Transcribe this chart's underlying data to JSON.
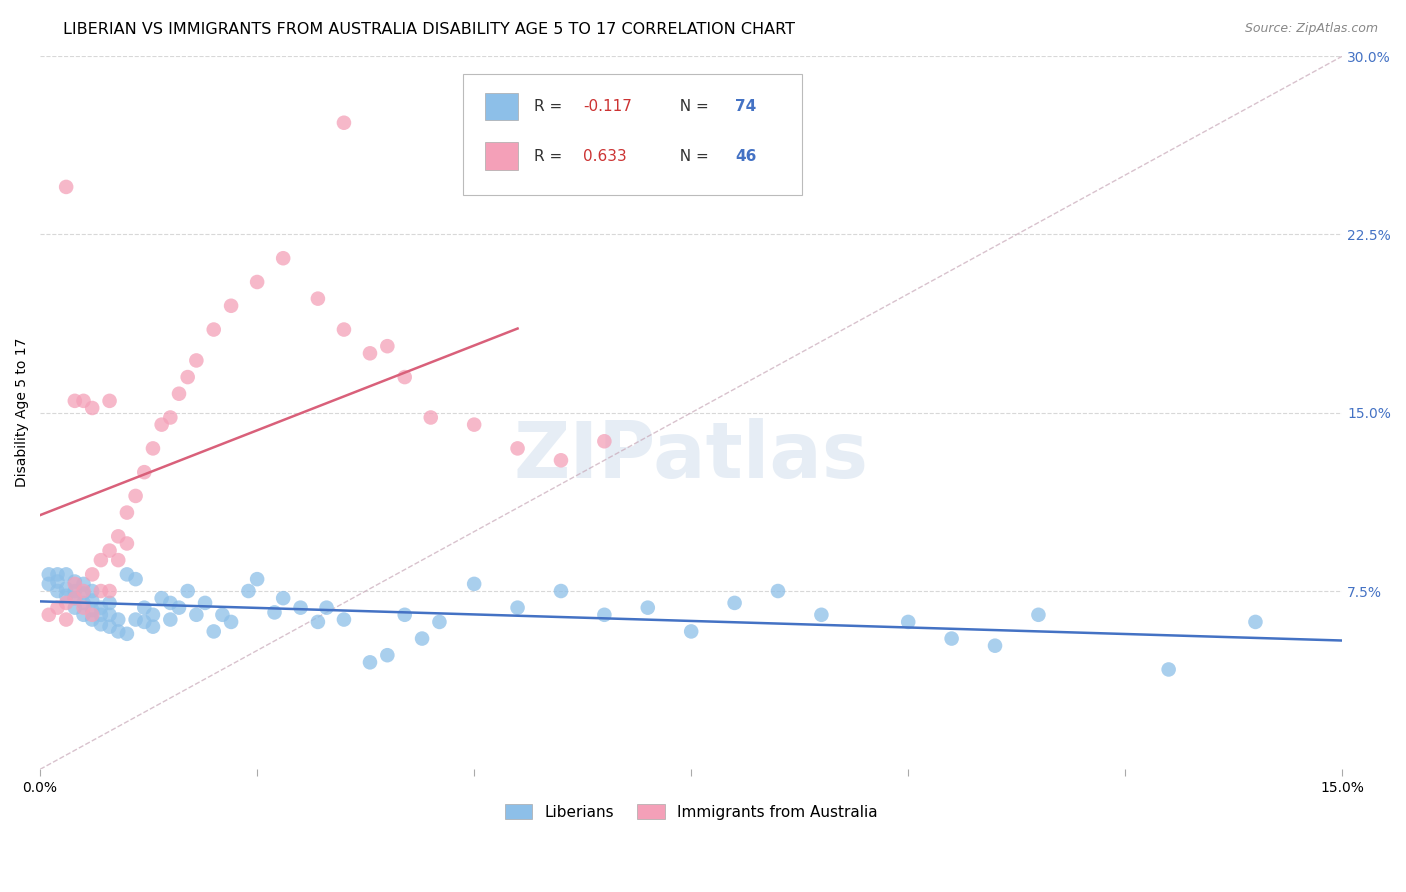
{
  "title": "LIBERIAN VS IMMIGRANTS FROM AUSTRALIA DISABILITY AGE 5 TO 17 CORRELATION CHART",
  "source": "Source: ZipAtlas.com",
  "ylabel": "Disability Age 5 to 17",
  "xlim": [
    0.0,
    0.15
  ],
  "ylim": [
    0.0,
    0.3
  ],
  "yticks": [
    0.0,
    0.075,
    0.15,
    0.225,
    0.3
  ],
  "ytick_labels": [
    "",
    "7.5%",
    "15.0%",
    "22.5%",
    "30.0%"
  ],
  "legend_R1": "-0.117",
  "legend_N1": "74",
  "legend_R2": "0.633",
  "legend_N2": "46",
  "liberian_color": "#8dbfe8",
  "australia_color": "#f4a0b8",
  "liberian_line_color": "#4472c4",
  "australia_line_color": "#d9607a",
  "diagonal_color": "#c8a8b8",
  "background_color": "#ffffff",
  "grid_color": "#d8d8d8",
  "title_fontsize": 11.5,
  "axis_label_fontsize": 10,
  "tick_fontsize": 10,
  "liberian_x": [
    0.001,
    0.001,
    0.002,
    0.002,
    0.002,
    0.003,
    0.003,
    0.003,
    0.004,
    0.004,
    0.004,
    0.004,
    0.005,
    0.005,
    0.005,
    0.005,
    0.006,
    0.006,
    0.006,
    0.006,
    0.007,
    0.007,
    0.007,
    0.008,
    0.008,
    0.008,
    0.009,
    0.009,
    0.01,
    0.01,
    0.011,
    0.011,
    0.012,
    0.012,
    0.013,
    0.013,
    0.014,
    0.015,
    0.015,
    0.016,
    0.017,
    0.018,
    0.019,
    0.02,
    0.021,
    0.022,
    0.024,
    0.025,
    0.027,
    0.028,
    0.03,
    0.032,
    0.033,
    0.035,
    0.038,
    0.04,
    0.042,
    0.044,
    0.046,
    0.05,
    0.055,
    0.06,
    0.065,
    0.07,
    0.075,
    0.08,
    0.085,
    0.09,
    0.1,
    0.105,
    0.11,
    0.115,
    0.13,
    0.14
  ],
  "liberian_y": [
    0.082,
    0.078,
    0.075,
    0.079,
    0.082,
    0.073,
    0.076,
    0.082,
    0.068,
    0.072,
    0.075,
    0.079,
    0.065,
    0.07,
    0.074,
    0.078,
    0.063,
    0.067,
    0.071,
    0.075,
    0.061,
    0.065,
    0.068,
    0.06,
    0.065,
    0.07,
    0.058,
    0.063,
    0.057,
    0.082,
    0.063,
    0.08,
    0.062,
    0.068,
    0.06,
    0.065,
    0.072,
    0.063,
    0.07,
    0.068,
    0.075,
    0.065,
    0.07,
    0.058,
    0.065,
    0.062,
    0.075,
    0.08,
    0.066,
    0.072,
    0.068,
    0.062,
    0.068,
    0.063,
    0.045,
    0.048,
    0.065,
    0.055,
    0.062,
    0.078,
    0.068,
    0.075,
    0.065,
    0.068,
    0.058,
    0.07,
    0.075,
    0.065,
    0.062,
    0.055,
    0.052,
    0.065,
    0.042,
    0.062
  ],
  "australia_x": [
    0.001,
    0.002,
    0.003,
    0.003,
    0.004,
    0.004,
    0.005,
    0.005,
    0.006,
    0.006,
    0.007,
    0.007,
    0.008,
    0.008,
    0.009,
    0.009,
    0.01,
    0.01,
    0.011,
    0.012,
    0.013,
    0.014,
    0.015,
    0.016,
    0.017,
    0.018,
    0.02,
    0.022,
    0.025,
    0.028,
    0.032,
    0.035,
    0.038,
    0.04,
    0.042,
    0.045,
    0.05,
    0.055,
    0.06,
    0.065,
    0.003,
    0.004,
    0.005,
    0.006,
    0.008,
    0.035
  ],
  "australia_y": [
    0.065,
    0.068,
    0.063,
    0.07,
    0.072,
    0.078,
    0.068,
    0.075,
    0.065,
    0.082,
    0.075,
    0.088,
    0.075,
    0.092,
    0.088,
    0.098,
    0.095,
    0.108,
    0.115,
    0.125,
    0.135,
    0.145,
    0.148,
    0.158,
    0.165,
    0.172,
    0.185,
    0.195,
    0.205,
    0.215,
    0.198,
    0.185,
    0.175,
    0.178,
    0.165,
    0.148,
    0.145,
    0.135,
    0.13,
    0.138,
    0.245,
    0.155,
    0.155,
    0.152,
    0.155,
    0.272
  ]
}
